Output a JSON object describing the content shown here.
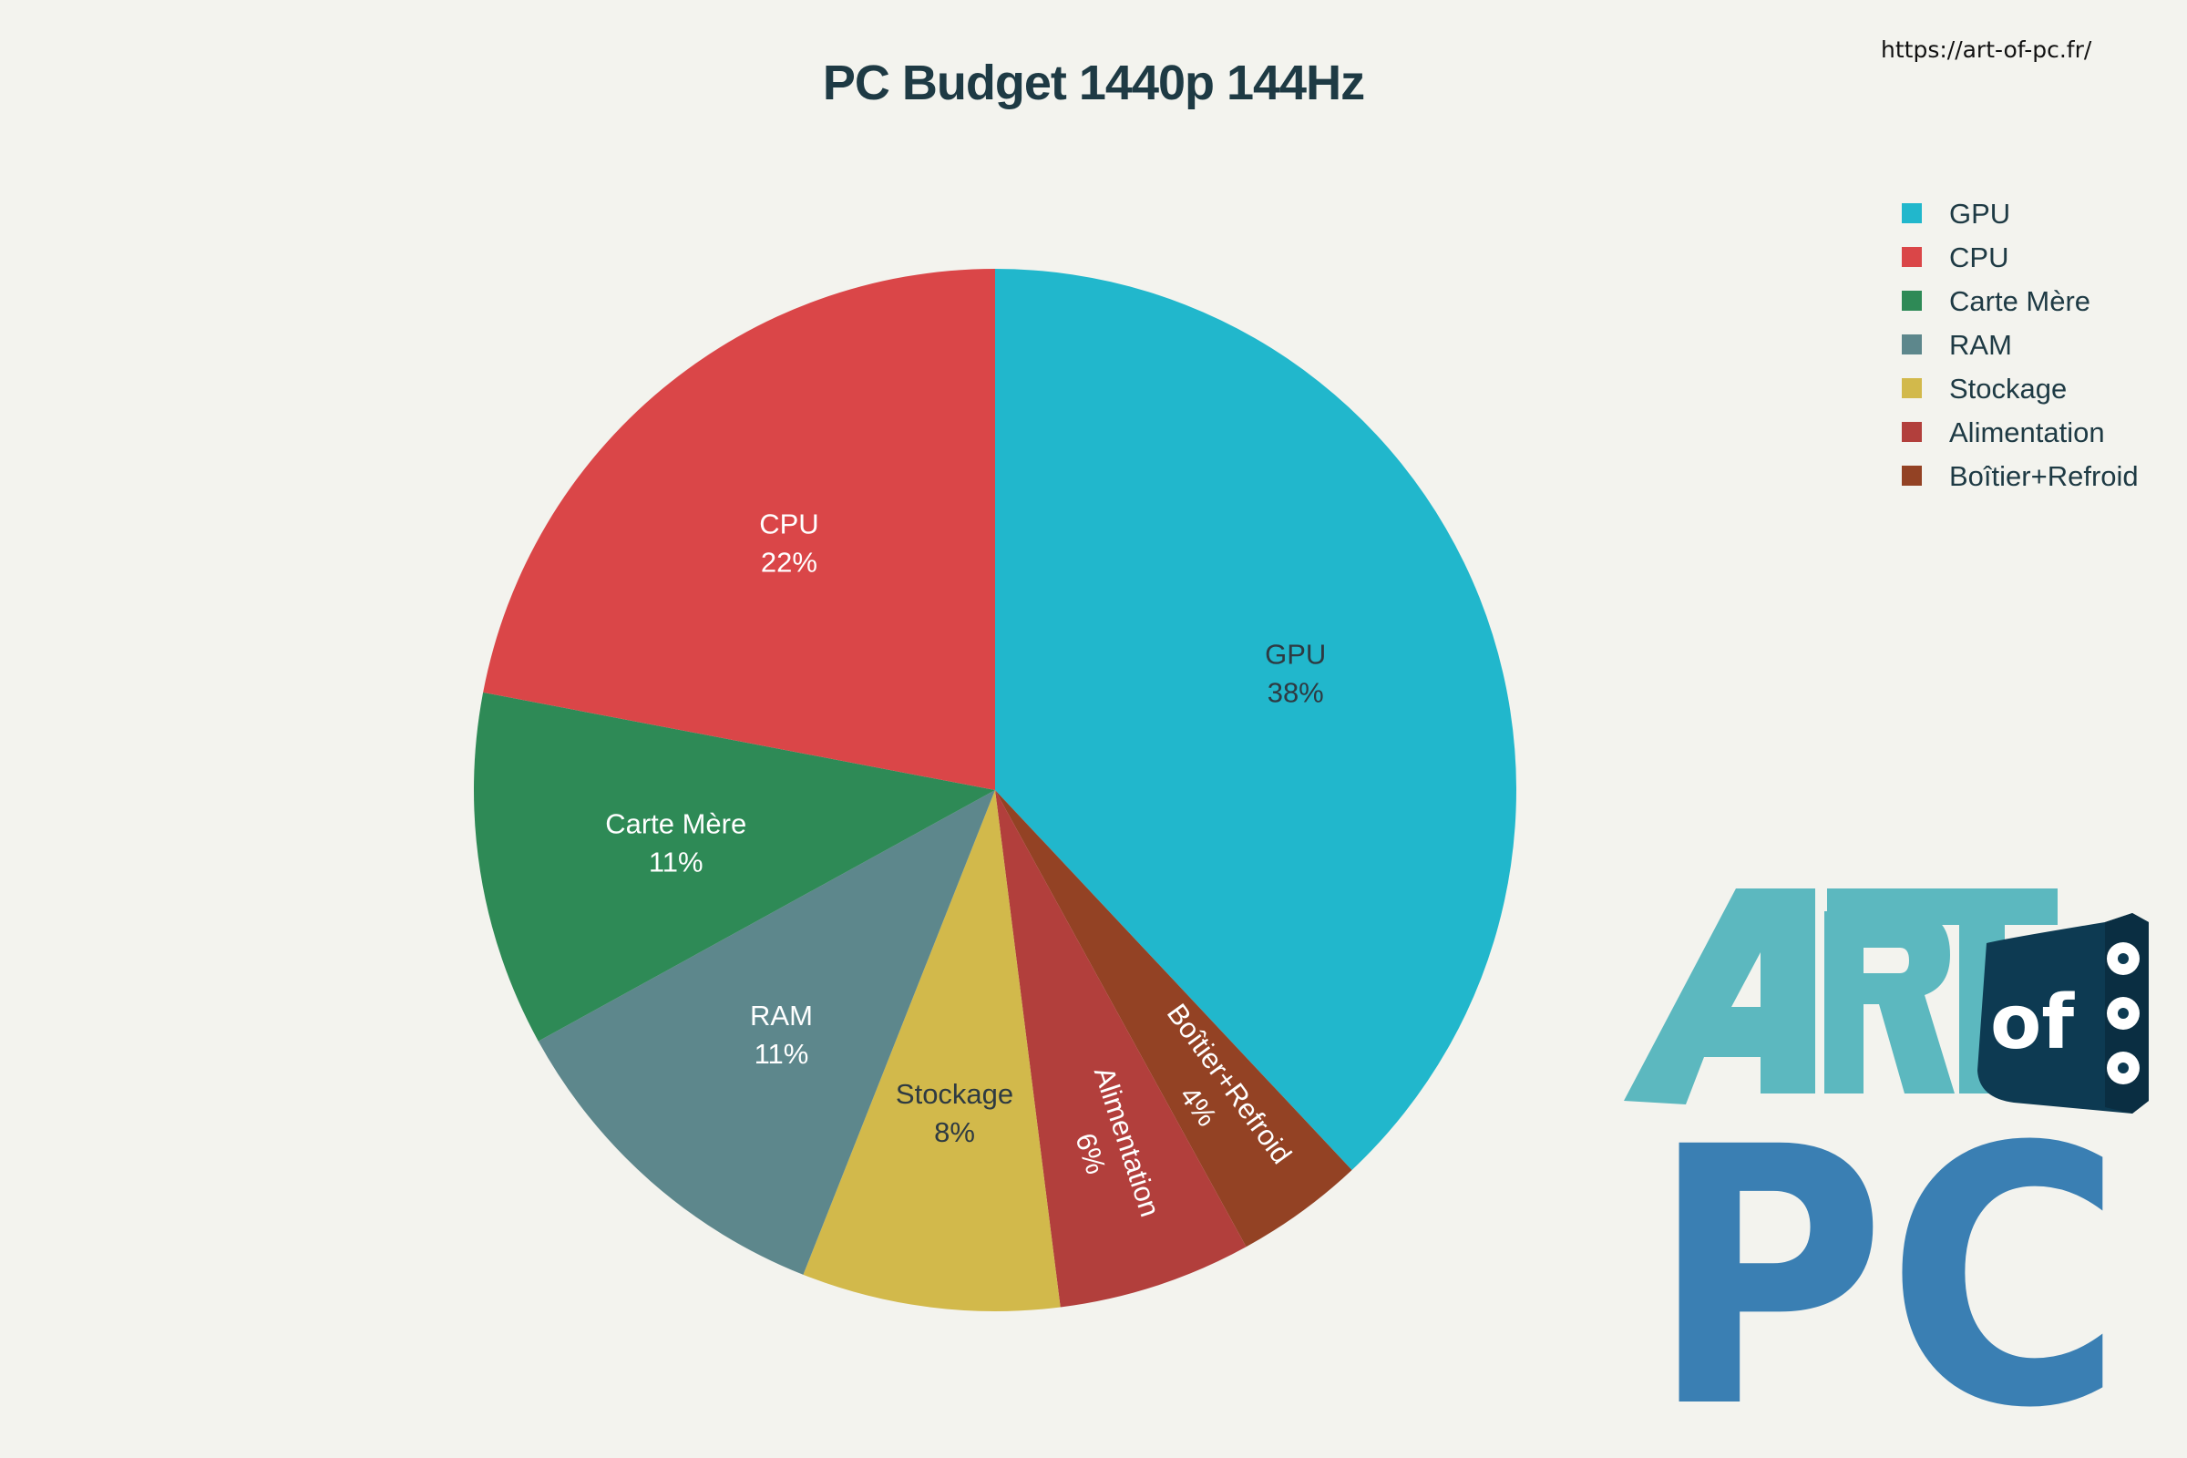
{
  "chart_data": {
    "type": "pie",
    "title": "PC Budget 1440p 144Hz",
    "source_url": "https://art-of-pc.fr/",
    "slices": [
      {
        "label": "GPU",
        "value": 38,
        "display": "38%",
        "color": "#21b7cc",
        "text_color": "#2e3a42",
        "label_rotated": false
      },
      {
        "label": "Boîtier+Refroid",
        "value": 4,
        "display": "4%",
        "color": "#934224",
        "text_color": "#ffffff",
        "label_rotated": true
      },
      {
        "label": "Alimentation",
        "value": 6,
        "display": "6%",
        "color": "#b23f3c",
        "text_color": "#ffffff",
        "label_rotated": true
      },
      {
        "label": "Stockage",
        "value": 8,
        "display": "8%",
        "color": "#d2b94b",
        "text_color": "#2e3a42",
        "label_rotated": false
      },
      {
        "label": "RAM",
        "value": 11,
        "display": "11%",
        "color": "#5d878c",
        "text_color": "#ffffff",
        "label_rotated": false
      },
      {
        "label": "Carte Mère",
        "value": 11,
        "display": "11%",
        "color": "#2e8a56",
        "text_color": "#ffffff",
        "label_rotated": false
      },
      {
        "label": "CPU",
        "value": 22,
        "display": "22%",
        "color": "#da4648",
        "text_color": "#ffffff",
        "label_rotated": false
      }
    ],
    "legend": {
      "placement": "top-right",
      "items": [
        {
          "label": "GPU",
          "color": "#21b7cc"
        },
        {
          "label": "CPU",
          "color": "#da4648"
        },
        {
          "label": "Carte Mère",
          "color": "#2e8a56"
        },
        {
          "label": "RAM",
          "color": "#5d878c"
        },
        {
          "label": "Stockage",
          "color": "#d2b94b"
        },
        {
          "label": "Alimentation",
          "color": "#b23f3c"
        },
        {
          "label": "Boîtier+Refroid",
          "color": "#934224"
        }
      ]
    }
  },
  "logo": {
    "word_top": "ART",
    "word_of": "of",
    "word_bottom": "PC",
    "color_light": "#5cb8bf",
    "color_dark": "#0d3a52",
    "color_blue": "#3a7fb3"
  }
}
